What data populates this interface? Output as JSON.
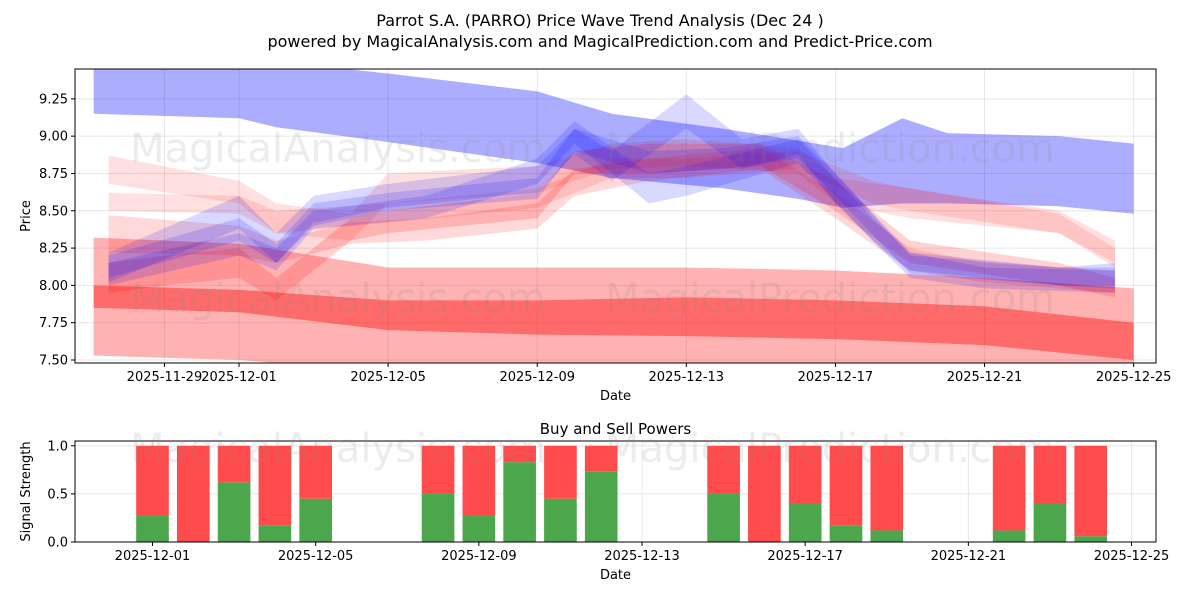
{
  "title": "Parrot S.A. (PARRO) Price Wave Trend Analysis (Dec 24 )",
  "subtitle": "powered by MagicalAnalysis.com and MagicalPrediction.com and Predict-Price.com",
  "watermarks": [
    "MagicalAnalysis.com",
    "MagicalPrediction.com"
  ],
  "chart_data": [
    {
      "type": "area",
      "title": "",
      "xlabel": "Date",
      "ylabel": "Price",
      "ylim": [
        7.48,
        9.45
      ],
      "x_unit": "days relative to 2025-12-01",
      "xlim": [
        -4.4,
        24.6
      ],
      "xticks": [
        {
          "d": -2,
          "label": "2025-11-29"
        },
        {
          "d": 0,
          "label": "2025-12-01"
        },
        {
          "d": 4,
          "label": "2025-12-05"
        },
        {
          "d": 8,
          "label": "2025-12-09"
        },
        {
          "d": 12,
          "label": "2025-12-13"
        },
        {
          "d": 16,
          "label": "2025-12-17"
        },
        {
          "d": 20,
          "label": "2025-12-21"
        },
        {
          "d": 24,
          "label": "2025-12-25"
        }
      ],
      "yticks": [
        "7.50",
        "7.75",
        "8.00",
        "8.25",
        "8.50",
        "8.75",
        "9.00",
        "9.25"
      ],
      "grid": true,
      "bands": [
        {
          "color": "#ff0000",
          "opacity": 0.3,
          "points": [
            [
              -3.9,
              7.53,
              8.32
            ],
            [
              0,
              7.5,
              8.28
            ],
            [
              4,
              7.42,
              8.12
            ],
            [
              8,
              7.4,
              8.12
            ],
            [
              12,
              7.38,
              8.12
            ],
            [
              16,
              7.35,
              8.1
            ],
            [
              20,
              7.3,
              8.05
            ],
            [
              24,
              7.22,
              7.98
            ]
          ]
        },
        {
          "color": "#ff0000",
          "opacity": 0.4,
          "points": [
            [
              -3.9,
              7.85,
              8.0
            ],
            [
              0,
              7.82,
              7.97
            ],
            [
              4,
              7.7,
              7.9
            ],
            [
              8,
              7.67,
              7.9
            ],
            [
              12,
              7.66,
              7.92
            ],
            [
              16,
              7.64,
              7.9
            ],
            [
              20,
              7.6,
              7.86
            ],
            [
              24,
              7.5,
              7.75
            ]
          ]
        },
        {
          "color": "#0000ff",
          "opacity": 0.32,
          "points": [
            [
              -3.9,
              9.15,
              9.6
            ],
            [
              0,
              9.12,
              9.55
            ],
            [
              1,
              9.06,
              9.5
            ],
            [
              4,
              8.96,
              9.42
            ],
            [
              8,
              8.82,
              9.3
            ],
            [
              10,
              8.72,
              9.15
            ],
            [
              13,
              8.65,
              9.05
            ],
            [
              15,
              8.58,
              8.97
            ],
            [
              16.2,
              8.52,
              8.92
            ],
            [
              17.8,
              8.55,
              9.12
            ],
            [
              19,
              8.55,
              9.02
            ],
            [
              22,
              8.53,
              9.0
            ],
            [
              24,
              8.48,
              8.95
            ]
          ]
        },
        {
          "color": "#ff0000",
          "opacity": 0.12,
          "points": [
            [
              -3.5,
              8.68,
              8.87
            ],
            [
              0,
              8.55,
              8.7
            ],
            [
              1,
              8.35,
              8.55
            ],
            [
              3,
              8.3,
              8.48
            ],
            [
              4,
              8.55,
              8.75
            ],
            [
              8,
              8.62,
              8.8
            ],
            [
              10,
              8.78,
              8.95
            ],
            [
              12,
              8.8,
              8.98
            ],
            [
              15,
              8.75,
              8.92
            ],
            [
              16,
              8.55,
              8.72
            ],
            [
              18,
              8.45,
              8.65
            ],
            [
              22,
              8.35,
              8.5
            ],
            [
              23.5,
              8.15,
              8.3
            ]
          ]
        },
        {
          "color": "#ff0000",
          "opacity": 0.12,
          "points": [
            [
              -3.5,
              8.5,
              8.62
            ],
            [
              0,
              8.48,
              8.6
            ],
            [
              1,
              8.35,
              8.5
            ],
            [
              4,
              8.42,
              8.55
            ],
            [
              8,
              8.52,
              8.65
            ],
            [
              10,
              8.72,
              8.85
            ],
            [
              12,
              8.72,
              8.85
            ],
            [
              15,
              8.78,
              8.9
            ],
            [
              17,
              8.55,
              8.7
            ],
            [
              18,
              8.5,
              8.65
            ],
            [
              22,
              8.35,
              8.48
            ],
            [
              23.5,
              8.12,
              8.25
            ]
          ]
        },
        {
          "color": "#ff0000",
          "opacity": 0.15,
          "points": [
            [
              -3.5,
              8.22,
              8.47
            ],
            [
              0,
              8.2,
              8.4
            ],
            [
              1,
              8.15,
              8.3
            ],
            [
              3,
              8.28,
              8.42
            ],
            [
              5,
              8.3,
              8.45
            ],
            [
              8,
              8.38,
              8.55
            ],
            [
              9,
              8.6,
              8.78
            ],
            [
              11,
              8.7,
              8.85
            ],
            [
              14,
              8.78,
              8.92
            ],
            [
              16,
              8.45,
              8.62
            ],
            [
              18,
              8.1,
              8.25
            ],
            [
              20,
              8.02,
              8.15
            ],
            [
              23.5,
              7.95,
              8.1
            ]
          ]
        },
        {
          "color": "#ff0000",
          "opacity": 0.18,
          "points": [
            [
              -3.5,
              7.95,
              8.15
            ],
            [
              -2,
              8.0,
              8.2
            ],
            [
              0,
              8.05,
              8.25
            ],
            [
              1,
              7.9,
              8.05
            ],
            [
              2,
              8.1,
              8.25
            ],
            [
              3,
              8.3,
              8.45
            ],
            [
              4,
              8.35,
              8.5
            ],
            [
              8,
              8.45,
              8.62
            ],
            [
              9,
              8.75,
              8.9
            ],
            [
              11,
              8.75,
              8.95
            ],
            [
              14,
              8.8,
              8.95
            ],
            [
              16,
              8.5,
              8.7
            ],
            [
              18,
              8.15,
              8.3
            ],
            [
              22,
              8.0,
              8.15
            ],
            [
              23.5,
              7.92,
              8.05
            ]
          ]
        },
        {
          "color": "#0000ff",
          "opacity": 0.15,
          "points": [
            [
              -3.5,
              8.02,
              8.22
            ],
            [
              0,
              8.38,
              8.6
            ],
            [
              1,
              8.15,
              8.35
            ],
            [
              2,
              8.42,
              8.6
            ],
            [
              4,
              8.52,
              8.68
            ],
            [
              8,
              8.62,
              8.8
            ],
            [
              9,
              8.88,
              9.05
            ],
            [
              10,
              8.7,
              8.9
            ],
            [
              12,
              9.05,
              9.28
            ],
            [
              13.5,
              8.78,
              8.98
            ],
            [
              15,
              8.88,
              9.05
            ],
            [
              16,
              8.55,
              8.75
            ],
            [
              18,
              8.05,
              8.22
            ],
            [
              20,
              7.98,
              8.12
            ],
            [
              23.5,
              7.95,
              8.1
            ]
          ]
        },
        {
          "color": "#0000ff",
          "opacity": 0.15,
          "points": [
            [
              -3.5,
              8.05,
              8.2
            ],
            [
              0,
              8.3,
              8.45
            ],
            [
              1,
              8.15,
              8.28
            ],
            [
              2,
              8.4,
              8.55
            ],
            [
              4,
              8.5,
              8.62
            ],
            [
              8,
              8.58,
              8.72
            ],
            [
              9,
              8.9,
              9.05
            ],
            [
              11,
              8.75,
              8.9
            ],
            [
              13,
              8.78,
              8.92
            ],
            [
              15,
              8.85,
              9.0
            ],
            [
              16,
              8.6,
              8.75
            ],
            [
              18,
              8.08,
              8.2
            ],
            [
              22,
              8.0,
              8.12
            ],
            [
              23.5,
              7.98,
              8.12
            ]
          ]
        },
        {
          "color": "#0000ff",
          "opacity": 0.15,
          "points": [
            [
              -3.5,
              8.0,
              8.15
            ],
            [
              0,
              8.2,
              8.35
            ],
            [
              1,
              8.1,
              8.25
            ],
            [
              2,
              8.38,
              8.5
            ],
            [
              5,
              8.45,
              8.6
            ],
            [
              8,
              8.68,
              8.85
            ],
            [
              9,
              8.95,
              9.1
            ],
            [
              11,
              8.55,
              8.75
            ],
            [
              12,
              8.6,
              8.8
            ],
            [
              15,
              8.82,
              8.98
            ],
            [
              17,
              8.3,
              8.45
            ],
            [
              18,
              8.1,
              8.22
            ],
            [
              22,
              8.0,
              8.12
            ],
            [
              23.5,
              8.0,
              8.15
            ]
          ]
        }
      ]
    },
    {
      "type": "bar",
      "title": "Buy and Sell Powers",
      "xlabel": "Date",
      "ylabel": "Signal Strength",
      "ylim": [
        0,
        1.05
      ],
      "yticks": [
        "0.0",
        "0.5",
        "1.0"
      ],
      "xticks": [
        {
          "d": 0,
          "label": "2025-12-01"
        },
        {
          "d": 4,
          "label": "2025-12-05"
        },
        {
          "d": 8,
          "label": "2025-12-09"
        },
        {
          "d": 12,
          "label": "2025-12-13"
        },
        {
          "d": 16,
          "label": "2025-12-17"
        },
        {
          "d": 20,
          "label": "2025-12-21"
        },
        {
          "d": 24,
          "label": "2025-12-25"
        }
      ],
      "xlim": [
        -1.9,
        24.6
      ],
      "categories": [
        "2025-12-01",
        "2025-12-02",
        "2025-12-03",
        "2025-12-04",
        "2025-12-05",
        "2025-12-08",
        "2025-12-09",
        "2025-12-10",
        "2025-12-11",
        "2025-12-12",
        "2025-12-15",
        "2025-12-16",
        "2025-12-17",
        "2025-12-18",
        "2025-12-19",
        "2025-12-22",
        "2025-12-23",
        "2025-12-24"
      ],
      "days": [
        0,
        1,
        2,
        3,
        4,
        7,
        8,
        9,
        10,
        11,
        14,
        15,
        16,
        17,
        18,
        21,
        22,
        23
      ],
      "series": [
        {
          "name": "Buy",
          "color": "#4ca64c",
          "values": [
            0.28,
            0,
            0.62,
            0.17,
            0.45,
            0.5,
            0.28,
            0.83,
            0.45,
            0.73,
            0.5,
            0,
            0.4,
            0.17,
            0.12,
            0.12,
            0.4,
            0.06
          ]
        },
        {
          "name": "Sell",
          "color": "#ff4b4b",
          "values": [
            0.72,
            1,
            0.38,
            0.83,
            0.55,
            0.5,
            0.72,
            0.17,
            0.55,
            0.27,
            0.5,
            1,
            0.6,
            0.83,
            0.88,
            0.88,
            0.6,
            0.94
          ]
        }
      ]
    }
  ]
}
